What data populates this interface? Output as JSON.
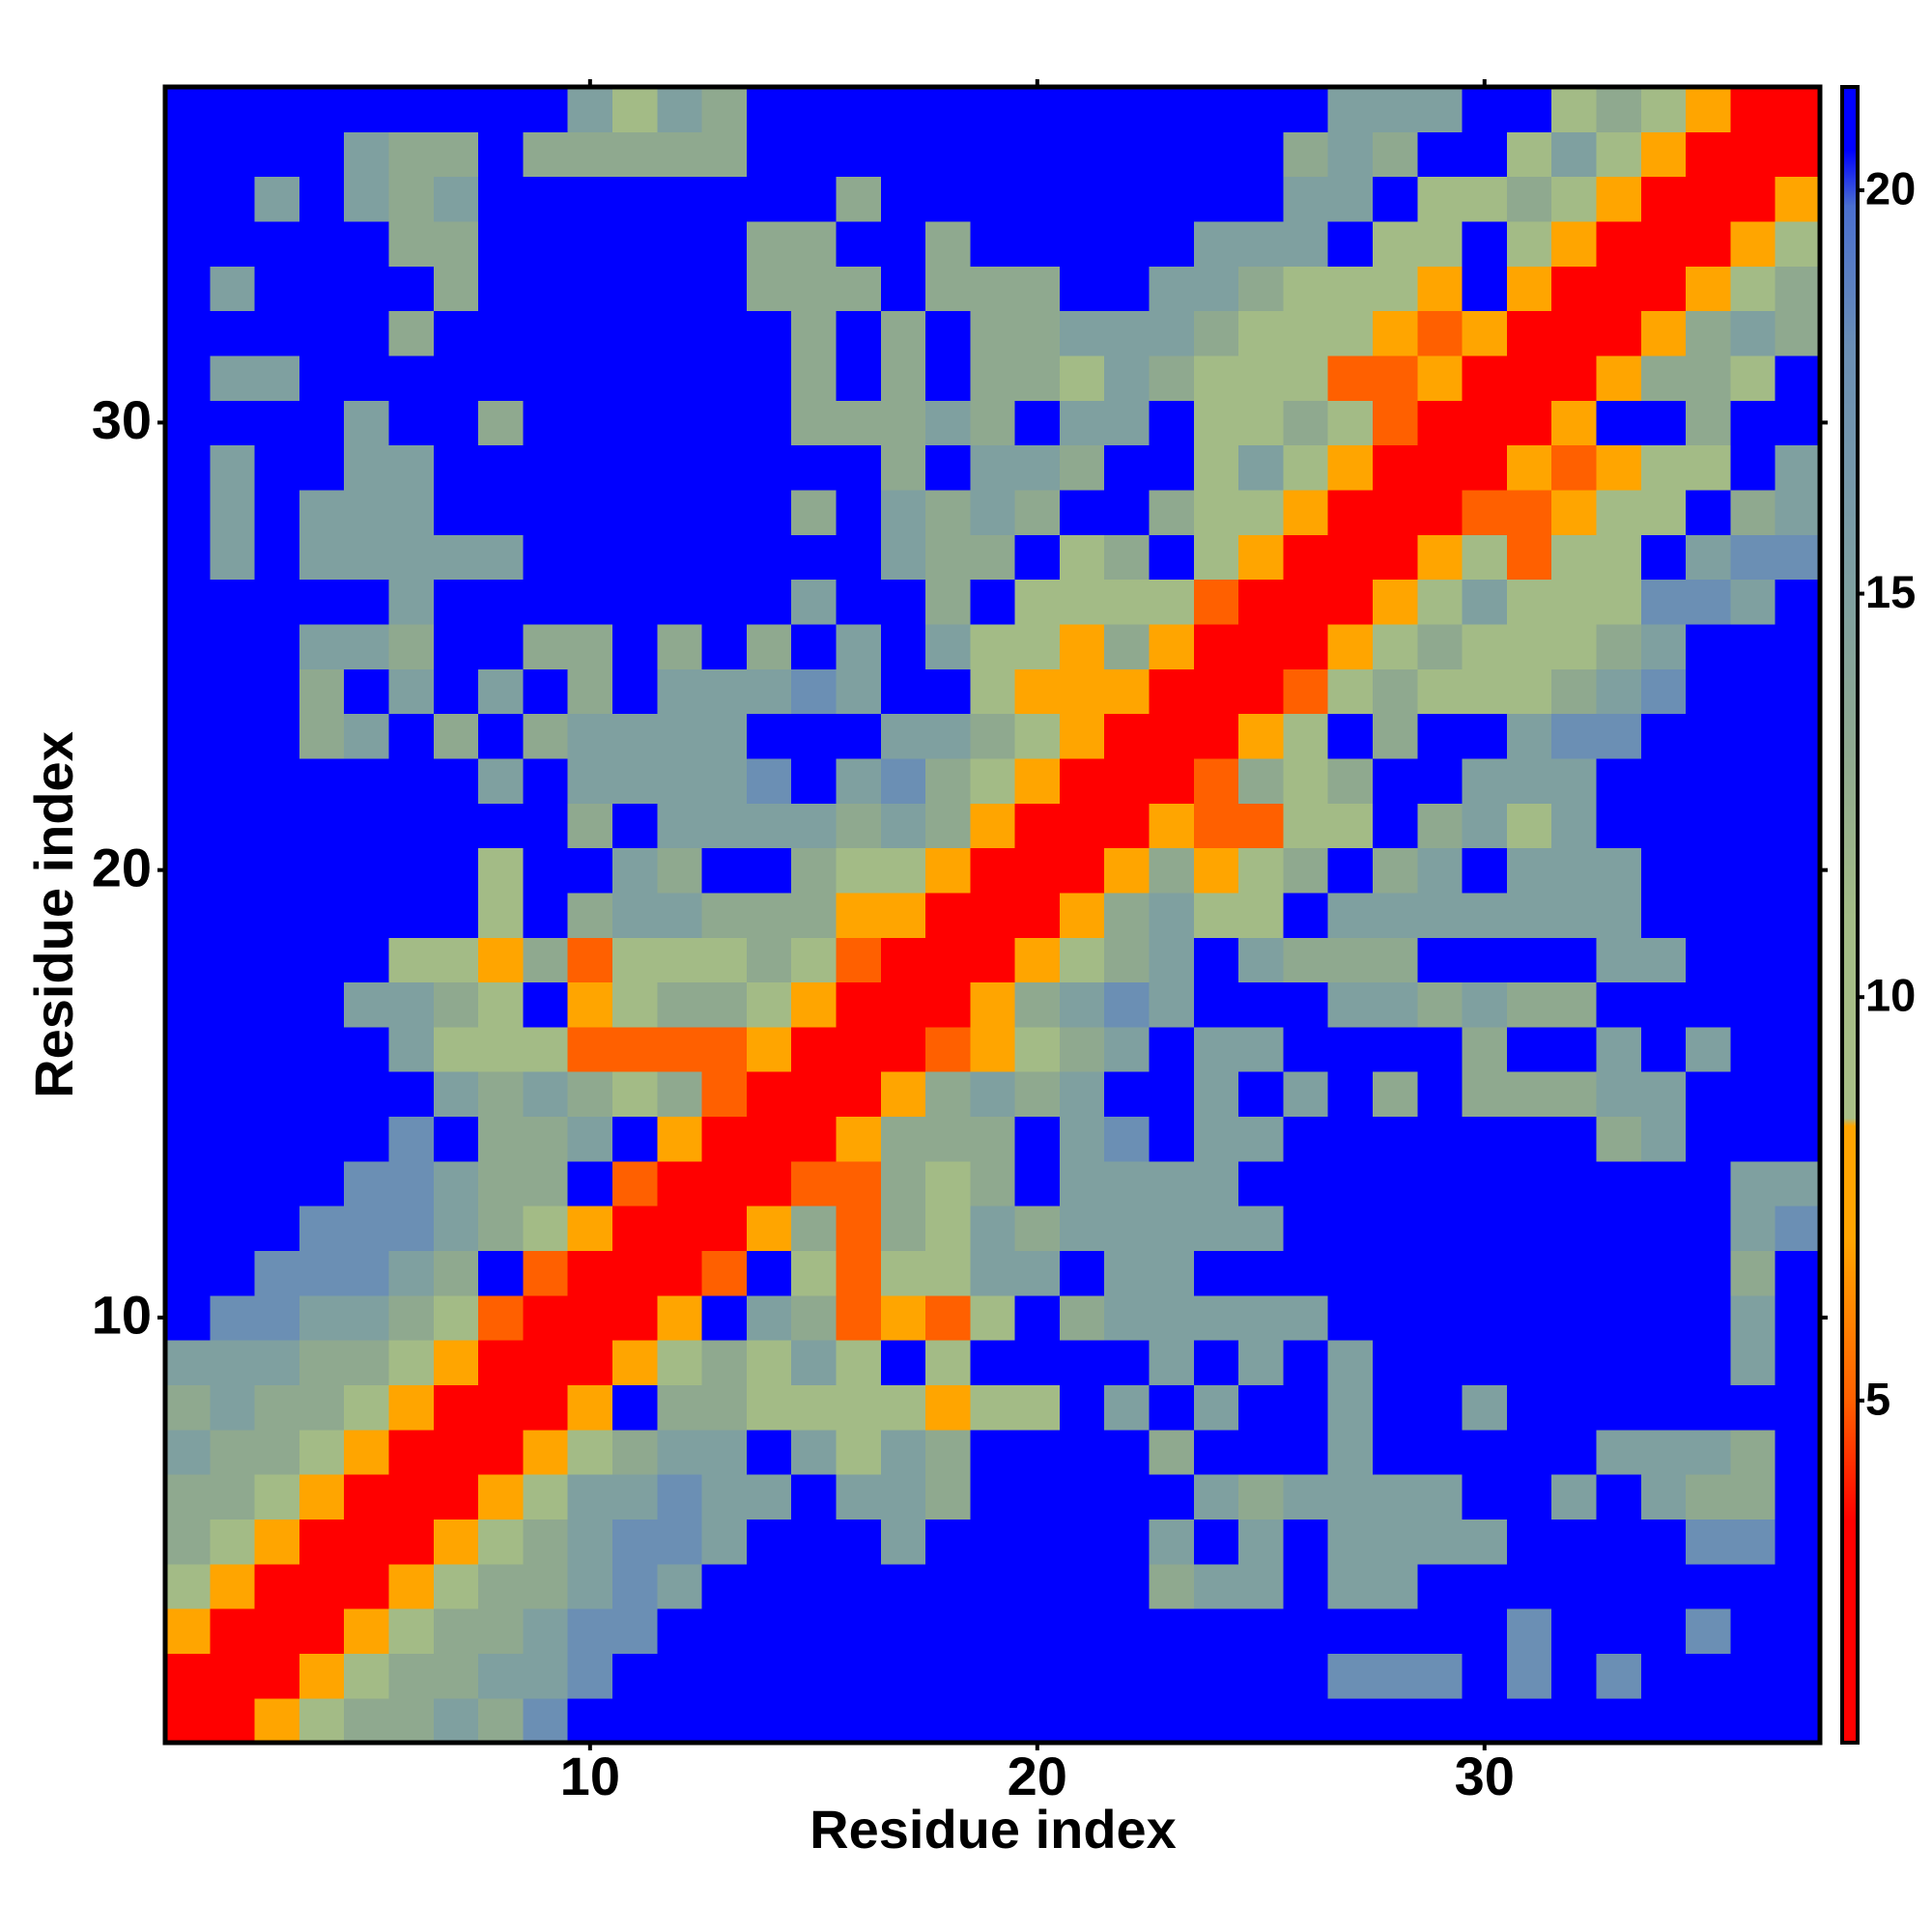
{
  "chart_data": {
    "type": "heatmap",
    "x_label": "Residue index",
    "y_label": "Residue index",
    "x": [
      1,
      2,
      3,
      4,
      5,
      6,
      7,
      8,
      9,
      10,
      11,
      12,
      13,
      14,
      15,
      16,
      17,
      18,
      19,
      20,
      21,
      22,
      23,
      24,
      25,
      26,
      27,
      28,
      29,
      30,
      31,
      32,
      33,
      34,
      35,
      36,
      37
    ],
    "y": [
      1,
      2,
      3,
      4,
      5,
      6,
      7,
      8,
      9,
      10,
      11,
      12,
      13,
      14,
      15,
      16,
      17,
      18,
      19,
      20,
      21,
      22,
      23,
      24,
      25,
      26,
      27,
      28,
      29,
      30,
      31,
      32,
      33,
      34,
      35,
      36,
      37
    ],
    "xlim": [
      0.5,
      37.5
    ],
    "ylim": [
      0.5,
      37.5
    ],
    "xticks": [
      10,
      20,
      30
    ],
    "yticks": [
      10,
      20,
      30
    ],
    "zlim": [
      0.76,
      21.28
    ],
    "zticks": [
      5,
      10,
      15,
      20
    ],
    "colorscale": [
      [
        0.76,
        "#ff0000"
      ],
      [
        3.5,
        "#ff0000"
      ],
      [
        5,
        "#ff6000"
      ],
      [
        7,
        "#ffa500"
      ],
      [
        8.4,
        "#ffa500"
      ],
      [
        8.5,
        "#a9be86"
      ],
      [
        11,
        "#a3bb86"
      ],
      [
        13,
        "#8fa98f"
      ],
      [
        15,
        "#7fa0a0"
      ],
      [
        18,
        "#6b8fb4"
      ],
      [
        19.8,
        "#4a6fd0"
      ],
      [
        20.5,
        "#0000ff"
      ],
      [
        21.28,
        "#0000ff"
      ]
    ],
    "z": [
      [
        2,
        2,
        7,
        11,
        13,
        13,
        15,
        13,
        18,
        21,
        21,
        21,
        21,
        21,
        21,
        21,
        21,
        21,
        21,
        21,
        21,
        21,
        21,
        21,
        21,
        21,
        21,
        21,
        21,
        21,
        21,
        21,
        21,
        21,
        21,
        21,
        21
      ],
      [
        2,
        2,
        2,
        7,
        11,
        13,
        13,
        15,
        15,
        18,
        21,
        21,
        21,
        21,
        21,
        21,
        21,
        21,
        21,
        21,
        21,
        21,
        21,
        21,
        21,
        21,
        18,
        18,
        18,
        21,
        18,
        21,
        18,
        21,
        21,
        21,
        21
      ],
      [
        7,
        2,
        2,
        2,
        7,
        11,
        13,
        13,
        15,
        18,
        18,
        21,
        21,
        21,
        21,
        21,
        21,
        21,
        21,
        21,
        21,
        21,
        21,
        21,
        21,
        21,
        21,
        21,
        21,
        21,
        18,
        21,
        21,
        21,
        18,
        21,
        21
      ],
      [
        11,
        7,
        2,
        2,
        2,
        7,
        11,
        13,
        13,
        15,
        18,
        15,
        21,
        21,
        21,
        21,
        21,
        21,
        21,
        21,
        21,
        21,
        13,
        15,
        15,
        21,
        15,
        15,
        21,
        21,
        21,
        21,
        21,
        21,
        21,
        21,
        21
      ],
      [
        13,
        11,
        7,
        2,
        2,
        2,
        7,
        11,
        13,
        15,
        18,
        18,
        15,
        21,
        21,
        21,
        15,
        21,
        21,
        21,
        21,
        21,
        15,
        21,
        15,
        21,
        15,
        15,
        15,
        15,
        21,
        21,
        21,
        21,
        18,
        18,
        21
      ],
      [
        13,
        13,
        11,
        7,
        2,
        2,
        2,
        7,
        11,
        15,
        15,
        18,
        15,
        15,
        21,
        15,
        15,
        13,
        21,
        21,
        21,
        21,
        21,
        15,
        13,
        15,
        15,
        15,
        15,
        21,
        21,
        15,
        21,
        15,
        13,
        13,
        21
      ],
      [
        15,
        13,
        13,
        11,
        7,
        2,
        2,
        2,
        7,
        11,
        13,
        15,
        15,
        21,
        15,
        11,
        15,
        13,
        21,
        21,
        21,
        21,
        13,
        21,
        21,
        21,
        15,
        21,
        21,
        21,
        21,
        21,
        15,
        15,
        15,
        13,
        21
      ],
      [
        13,
        15,
        13,
        13,
        11,
        7,
        2,
        2,
        2,
        7,
        21,
        13,
        13,
        11,
        11,
        11,
        11,
        7,
        11,
        11,
        21,
        15,
        21,
        15,
        21,
        21,
        15,
        21,
        21,
        15,
        21,
        21,
        21,
        21,
        21,
        21,
        21
      ],
      [
        15,
        15,
        15,
        13,
        13,
        11,
        7,
        2,
        2,
        2,
        7,
        11,
        13,
        11,
        15,
        11,
        21,
        11,
        21,
        21,
        21,
        21,
        15,
        21,
        15,
        21,
        15,
        21,
        21,
        21,
        21,
        21,
        21,
        21,
        21,
        15,
        21
      ],
      [
        21,
        18,
        18,
        15,
        15,
        13,
        11,
        5,
        2,
        2,
        2,
        7,
        21,
        15,
        13,
        5,
        7,
        5,
        11,
        21,
        13,
        15,
        15,
        15,
        15,
        15,
        21,
        21,
        21,
        21,
        21,
        21,
        21,
        21,
        21,
        15,
        21
      ],
      [
        21,
        21,
        18,
        18,
        18,
        15,
        13,
        21,
        5,
        2,
        2,
        2,
        5,
        21,
        11,
        5,
        11,
        11,
        15,
        15,
        21,
        15,
        15,
        21,
        21,
        21,
        21,
        21,
        21,
        21,
        21,
        21,
        21,
        21,
        21,
        13,
        21
      ],
      [
        21,
        21,
        21,
        18,
        18,
        18,
        15,
        13,
        11,
        7,
        2,
        2,
        2,
        7,
        13,
        5,
        13,
        11,
        15,
        13,
        15,
        15,
        15,
        15,
        15,
        21,
        21,
        21,
        21,
        21,
        21,
        21,
        21,
        21,
        21,
        15,
        18
      ],
      [
        21,
        21,
        21,
        21,
        18,
        18,
        15,
        13,
        13,
        21,
        5,
        2,
        2,
        2,
        5,
        5,
        13,
        11,
        13,
        21,
        15,
        15,
        15,
        15,
        21,
        21,
        21,
        21,
        21,
        21,
        21,
        21,
        21,
        21,
        21,
        15,
        15
      ],
      [
        21,
        21,
        21,
        21,
        21,
        18,
        21,
        13,
        13,
        15,
        21,
        7,
        2,
        2,
        2,
        7,
        13,
        13,
        13,
        21,
        15,
        18,
        21,
        15,
        15,
        21,
        21,
        21,
        21,
        21,
        21,
        21,
        13,
        15,
        21,
        21,
        21
      ],
      [
        21,
        21,
        21,
        21,
        21,
        21,
        15,
        13,
        15,
        13,
        11,
        13,
        5,
        2,
        2,
        2,
        7,
        13,
        15,
        13,
        15,
        21,
        21,
        15,
        21,
        15,
        21,
        13,
        21,
        13,
        13,
        13,
        15,
        15,
        21,
        21,
        21
      ],
      [
        21,
        21,
        21,
        21,
        21,
        15,
        11,
        11,
        11,
        5,
        5,
        5,
        5,
        7,
        2,
        2,
        2,
        5,
        7,
        11,
        13,
        15,
        21,
        15,
        15,
        21,
        21,
        21,
        21,
        13,
        21,
        21,
        15,
        21,
        15,
        21,
        21
      ],
      [
        21,
        21,
        21,
        21,
        15,
        15,
        13,
        11,
        21,
        7,
        11,
        13,
        13,
        11,
        7,
        2,
        2,
        2,
        7,
        13,
        15,
        18,
        15,
        21,
        21,
        21,
        15,
        15,
        13,
        15,
        13,
        13,
        21,
        21,
        21,
        21,
        21
      ],
      [
        21,
        21,
        21,
        21,
        21,
        11,
        11,
        7,
        13,
        5,
        11,
        11,
        11,
        13,
        11,
        5,
        2,
        2,
        2,
        7,
        11,
        13,
        15,
        21,
        15,
        13,
        13,
        13,
        21,
        21,
        21,
        21,
        15,
        15,
        21,
        21,
        21
      ],
      [
        21,
        21,
        21,
        21,
        21,
        21,
        21,
        11,
        21,
        13,
        15,
        15,
        13,
        13,
        13,
        7,
        7,
        2,
        2,
        2,
        7,
        13,
        15,
        11,
        11,
        21,
        15,
        15,
        15,
        15,
        15,
        15,
        15,
        21,
        21,
        21,
        21
      ],
      [
        21,
        21,
        21,
        21,
        21,
        21,
        21,
        11,
        21,
        21,
        15,
        13,
        21,
        21,
        13,
        11,
        11,
        7,
        2,
        2,
        2,
        7,
        13,
        7,
        11,
        13,
        21,
        13,
        15,
        21,
        15,
        15,
        15,
        21,
        21,
        21,
        21
      ],
      [
        21,
        21,
        21,
        21,
        21,
        21,
        21,
        21,
        21,
        13,
        21,
        15,
        15,
        15,
        15,
        13,
        15,
        13,
        7,
        2,
        2,
        2,
        7,
        5,
        5,
        11,
        11,
        21,
        13,
        15,
        11,
        15,
        21,
        21,
        21,
        21,
        21
      ],
      [
        21,
        21,
        21,
        21,
        21,
        21,
        21,
        15,
        21,
        15,
        15,
        15,
        15,
        18,
        21,
        15,
        18,
        13,
        11,
        7,
        2,
        2,
        2,
        5,
        13,
        11,
        13,
        21,
        21,
        15,
        15,
        15,
        21,
        21,
        21,
        21,
        21
      ],
      [
        21,
        21,
        21,
        13,
        15,
        21,
        13,
        21,
        13,
        15,
        15,
        15,
        15,
        21,
        21,
        21,
        15,
        15,
        13,
        11,
        7,
        2,
        2,
        2,
        7,
        11,
        21,
        13,
        21,
        21,
        15,
        18,
        18,
        21,
        21,
        21,
        21
      ],
      [
        21,
        21,
        21,
        13,
        21,
        15,
        21,
        15,
        21,
        13,
        21,
        15,
        15,
        15,
        18,
        15,
        21,
        21,
        11,
        7,
        7,
        7,
        2,
        2,
        2,
        5,
        11,
        13,
        11,
        11,
        11,
        13,
        15,
        18,
        21,
        21,
        21
      ],
      [
        21,
        21,
        21,
        15,
        15,
        13,
        21,
        21,
        13,
        13,
        21,
        13,
        21,
        13,
        21,
        15,
        21,
        15,
        11,
        11,
        7,
        13,
        7,
        2,
        2,
        2,
        7,
        11,
        13,
        11,
        11,
        11,
        13,
        15,
        21,
        21,
        21
      ],
      [
        21,
        21,
        21,
        21,
        21,
        15,
        21,
        21,
        21,
        21,
        21,
        21,
        21,
        21,
        15,
        21,
        21,
        13,
        21,
        11,
        11,
        11,
        11,
        5,
        2,
        2,
        2,
        7,
        11,
        15,
        11,
        11,
        11,
        18,
        18,
        15,
        21
      ],
      [
        21,
        15,
        21,
        15,
        15,
        15,
        15,
        15,
        21,
        21,
        21,
        21,
        21,
        21,
        21,
        21,
        15,
        13,
        13,
        21,
        11,
        13,
        21,
        11,
        7,
        2,
        2,
        2,
        7,
        11,
        5,
        11,
        11,
        21,
        15,
        18,
        18
      ],
      [
        21,
        15,
        21,
        15,
        15,
        15,
        21,
        21,
        21,
        21,
        21,
        21,
        21,
        21,
        13,
        21,
        15,
        13,
        15,
        13,
        21,
        21,
        13,
        11,
        11,
        7,
        2,
        2,
        2,
        5,
        5,
        7,
        11,
        11,
        21,
        13,
        15
      ],
      [
        21,
        15,
        21,
        21,
        15,
        15,
        21,
        21,
        21,
        21,
        21,
        21,
        21,
        21,
        21,
        21,
        13,
        21,
        15,
        15,
        13,
        21,
        21,
        11,
        15,
        11,
        7,
        2,
        2,
        2,
        7,
        5,
        7,
        11,
        11,
        21,
        15
      ],
      [
        21,
        21,
        21,
        21,
        15,
        21,
        21,
        13,
        21,
        21,
        21,
        21,
        21,
        21,
        13,
        13,
        13,
        15,
        13,
        21,
        15,
        15,
        21,
        11,
        11,
        13,
        11,
        5,
        2,
        2,
        2,
        7,
        21,
        21,
        13,
        21,
        21
      ],
      [
        21,
        15,
        15,
        21,
        21,
        21,
        21,
        21,
        21,
        21,
        21,
        21,
        21,
        21,
        13,
        21,
        13,
        21,
        13,
        13,
        11,
        15,
        13,
        11,
        11,
        11,
        5,
        5,
        7,
        2,
        2,
        2,
        7,
        13,
        13,
        11,
        21
      ],
      [
        21,
        21,
        21,
        21,
        21,
        13,
        21,
        21,
        21,
        21,
        21,
        21,
        21,
        21,
        13,
        21,
        13,
        21,
        13,
        13,
        15,
        15,
        15,
        13,
        11,
        11,
        11,
        7,
        5,
        7,
        2,
        2,
        2,
        7,
        13,
        15,
        13
      ],
      [
        21,
        15,
        21,
        21,
        21,
        21,
        13,
        21,
        21,
        21,
        21,
        21,
        21,
        13,
        13,
        13,
        21,
        13,
        13,
        13,
        21,
        21,
        15,
        15,
        13,
        11,
        11,
        11,
        7,
        21,
        7,
        2,
        2,
        2,
        7,
        11,
        13
      ],
      [
        21,
        21,
        21,
        21,
        21,
        13,
        13,
        21,
        21,
        21,
        21,
        21,
        21,
        13,
        13,
        21,
        21,
        13,
        21,
        21,
        21,
        21,
        21,
        15,
        15,
        15,
        21,
        11,
        11,
        21,
        11,
        7,
        2,
        2,
        2,
        7,
        11
      ],
      [
        21,
        21,
        15,
        21,
        15,
        13,
        15,
        21,
        21,
        21,
        21,
        21,
        21,
        21,
        21,
        13,
        21,
        21,
        21,
        21,
        21,
        21,
        21,
        21,
        21,
        15,
        15,
        21,
        11,
        11,
        13,
        11,
        7,
        2,
        2,
        2,
        7
      ],
      [
        21,
        21,
        21,
        21,
        15,
        13,
        13,
        21,
        13,
        13,
        13,
        13,
        13,
        21,
        21,
        21,
        21,
        21,
        21,
        21,
        21,
        21,
        21,
        21,
        21,
        13,
        15,
        13,
        21,
        21,
        11,
        15,
        11,
        7,
        2,
        2,
        2
      ],
      [
        21,
        21,
        21,
        21,
        21,
        21,
        21,
        21,
        21,
        15,
        11,
        15,
        13,
        21,
        21,
        21,
        21,
        21,
        21,
        21,
        21,
        21,
        21,
        21,
        21,
        21,
        15,
        15,
        15,
        21,
        21,
        11,
        13,
        11,
        7,
        2,
        2
      ]
    ]
  }
}
